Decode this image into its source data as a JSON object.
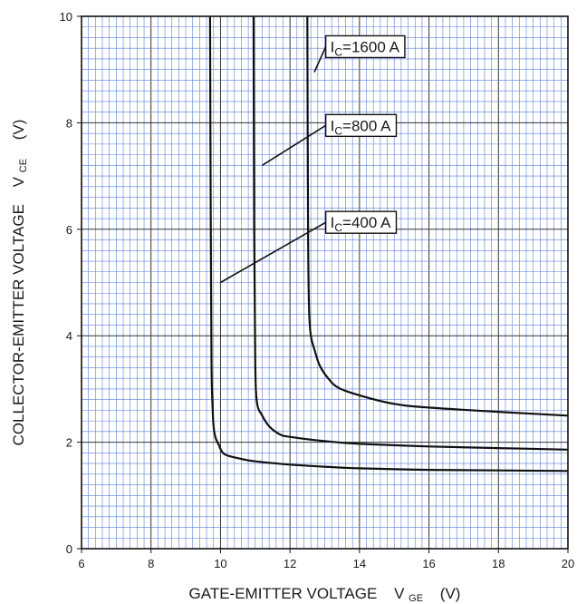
{
  "chart_data": {
    "type": "line",
    "title": "",
    "xlabel": {
      "main": "GATE-EMITTER VOLTAGE",
      "symbol": "V",
      "sub": "GE",
      "unit": "(V)"
    },
    "ylabel": {
      "main": "COLLECTOR-EMITTER VOLTAGE",
      "symbol": "V",
      "sub": "CE",
      "unit": "(V)"
    },
    "xlim": [
      6,
      20
    ],
    "ylim": [
      0,
      10
    ],
    "xticks": [
      6,
      8,
      10,
      12,
      14,
      16,
      18,
      20
    ],
    "yticks": [
      0,
      2,
      4,
      6,
      8,
      10
    ],
    "grid": true,
    "grid_color": "#5a7fd6",
    "line_color": "#111111",
    "series": [
      {
        "name": "Ic=400 A",
        "label_parts": {
          "pre": "I",
          "sub": "C",
          "post": "=400 A"
        },
        "x": [
          9.7,
          9.72,
          9.74,
          9.77,
          9.8,
          9.85,
          9.95,
          10.1,
          10.5,
          11,
          12,
          13,
          14,
          16,
          18,
          20
        ],
        "y": [
          10,
          6,
          3.5,
          2.7,
          2.3,
          2.1,
          1.95,
          1.78,
          1.7,
          1.64,
          1.58,
          1.54,
          1.51,
          1.48,
          1.47,
          1.46
        ]
      },
      {
        "name": "Ic=800 A",
        "label_parts": {
          "pre": "I",
          "sub": "C",
          "post": "=800 A"
        },
        "x": [
          10.95,
          10.97,
          11.0,
          11.05,
          11.2,
          11.4,
          11.7,
          12,
          13,
          14,
          16,
          18,
          20
        ],
        "y": [
          10,
          6,
          3.5,
          2.75,
          2.5,
          2.3,
          2.15,
          2.1,
          2.02,
          1.97,
          1.92,
          1.89,
          1.86
        ]
      },
      {
        "name": "Ic=1600 A",
        "label_parts": {
          "pre": "I",
          "sub": "C",
          "post": "=1600 A"
        },
        "x": [
          12.5,
          12.52,
          12.55,
          12.6,
          12.7,
          12.85,
          13.1,
          13.4,
          14,
          15,
          16,
          18,
          20
        ],
        "y": [
          10,
          6,
          4.5,
          4.0,
          3.75,
          3.45,
          3.2,
          3.02,
          2.88,
          2.72,
          2.65,
          2.57,
          2.5
        ]
      }
    ],
    "annotations": [
      {
        "series": "Ic=1600 A",
        "pre": "I",
        "sub": "C",
        "post": "=1600 A",
        "box_x": 13.03,
        "box_y": 9.6,
        "tip_x": 12.7,
        "tip_y": 8.95
      },
      {
        "series": "Ic=800 A",
        "pre": "I",
        "sub": "C",
        "post": "=800 A",
        "box_x": 13.03,
        "box_y": 8.12,
        "tip_x": 11.2,
        "tip_y": 7.2
      },
      {
        "series": "Ic=400 A",
        "pre": "I",
        "sub": "C",
        "post": "=400 A",
        "box_x": 13.03,
        "box_y": 6.3,
        "tip_x": 10.0,
        "tip_y": 5.0
      }
    ]
  }
}
